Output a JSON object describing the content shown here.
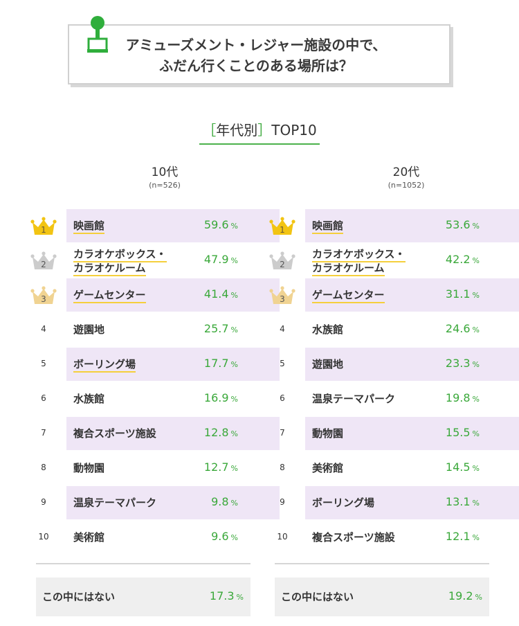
{
  "header": {
    "title_line1": "アミューズメント・レジャー施設の中で、",
    "title_line2": "ふだん行くことのある場所は？",
    "icon": "joystick-icon"
  },
  "subtitle": {
    "bracket_open": "［",
    "bracket_text": "年代別",
    "bracket_close": "］",
    "rest": "TOP10"
  },
  "colors": {
    "accent_green": "#3aa83a",
    "row_highlight": "#efe6f6",
    "underline_yellow": "#f5cf3c",
    "gold": "#f2c413",
    "silver": "#cccccc",
    "bronze": "#f0d392"
  },
  "chart_data": [
    {
      "type": "table",
      "title": "10代",
      "n_label": "(n=526)",
      "unit": "%",
      "rows": [
        {
          "rank": "1",
          "label": [
            "映画館"
          ],
          "value": "59.6",
          "highlight": true,
          "underline": true,
          "crown": "gold"
        },
        {
          "rank": "2",
          "label": [
            "カラオケボックス・",
            "カラオケルーム"
          ],
          "value": "47.9",
          "highlight": false,
          "underline": true,
          "crown": "silver"
        },
        {
          "rank": "3",
          "label": [
            "ゲームセンター"
          ],
          "value": "41.4",
          "highlight": true,
          "underline": true,
          "crown": "bronze"
        },
        {
          "rank": "4",
          "label": [
            "遊園地"
          ],
          "value": "25.7",
          "highlight": false,
          "underline": false,
          "crown": null
        },
        {
          "rank": "5",
          "label": [
            "ボーリング場"
          ],
          "value": "17.7",
          "highlight": true,
          "underline": true,
          "crown": null
        },
        {
          "rank": "6",
          "label": [
            "水族館"
          ],
          "value": "16.9",
          "highlight": false,
          "underline": false,
          "crown": null
        },
        {
          "rank": "7",
          "label": [
            "複合スポーツ施設"
          ],
          "value": "12.8",
          "highlight": true,
          "underline": false,
          "crown": null
        },
        {
          "rank": "8",
          "label": [
            "動物園"
          ],
          "value": "12.7",
          "highlight": false,
          "underline": false,
          "crown": null
        },
        {
          "rank": "9",
          "label": [
            "温泉テーマパーク"
          ],
          "value": "9.8",
          "highlight": true,
          "underline": false,
          "crown": null
        },
        {
          "rank": "10",
          "label": [
            "美術館"
          ],
          "value": "9.6",
          "highlight": false,
          "underline": false,
          "crown": null
        }
      ],
      "none": {
        "label": "この中にはない",
        "value": "17.3"
      }
    },
    {
      "type": "table",
      "title": "20代",
      "n_label": "(n=1052)",
      "unit": "%",
      "rows": [
        {
          "rank": "1",
          "label": [
            "映画館"
          ],
          "value": "53.6",
          "highlight": true,
          "underline": true,
          "crown": "gold"
        },
        {
          "rank": "2",
          "label": [
            "カラオケボックス・",
            "カラオケルーム"
          ],
          "value": "42.2",
          "highlight": false,
          "underline": true,
          "crown": "silver"
        },
        {
          "rank": "3",
          "label": [
            "ゲームセンター"
          ],
          "value": "31.1",
          "highlight": true,
          "underline": true,
          "crown": "bronze"
        },
        {
          "rank": "4",
          "label": [
            "水族館"
          ],
          "value": "24.6",
          "highlight": false,
          "underline": false,
          "crown": null
        },
        {
          "rank": "5",
          "label": [
            "遊園地"
          ],
          "value": "23.3",
          "highlight": true,
          "underline": false,
          "crown": null
        },
        {
          "rank": "6",
          "label": [
            "温泉テーマパーク"
          ],
          "value": "19.8",
          "highlight": false,
          "underline": false,
          "crown": null
        },
        {
          "rank": "7",
          "label": [
            "動物園"
          ],
          "value": "15.5",
          "highlight": true,
          "underline": false,
          "crown": null
        },
        {
          "rank": "8",
          "label": [
            "美術館"
          ],
          "value": "14.5",
          "highlight": false,
          "underline": false,
          "crown": null
        },
        {
          "rank": "9",
          "label": [
            "ボーリング場"
          ],
          "value": "13.1",
          "highlight": true,
          "underline": false,
          "crown": null
        },
        {
          "rank": "10",
          "label": [
            "複合スポーツ施設"
          ],
          "value": "12.1",
          "highlight": false,
          "underline": false,
          "crown": null
        }
      ],
      "none": {
        "label": "この中にはない",
        "value": "19.2"
      }
    }
  ]
}
